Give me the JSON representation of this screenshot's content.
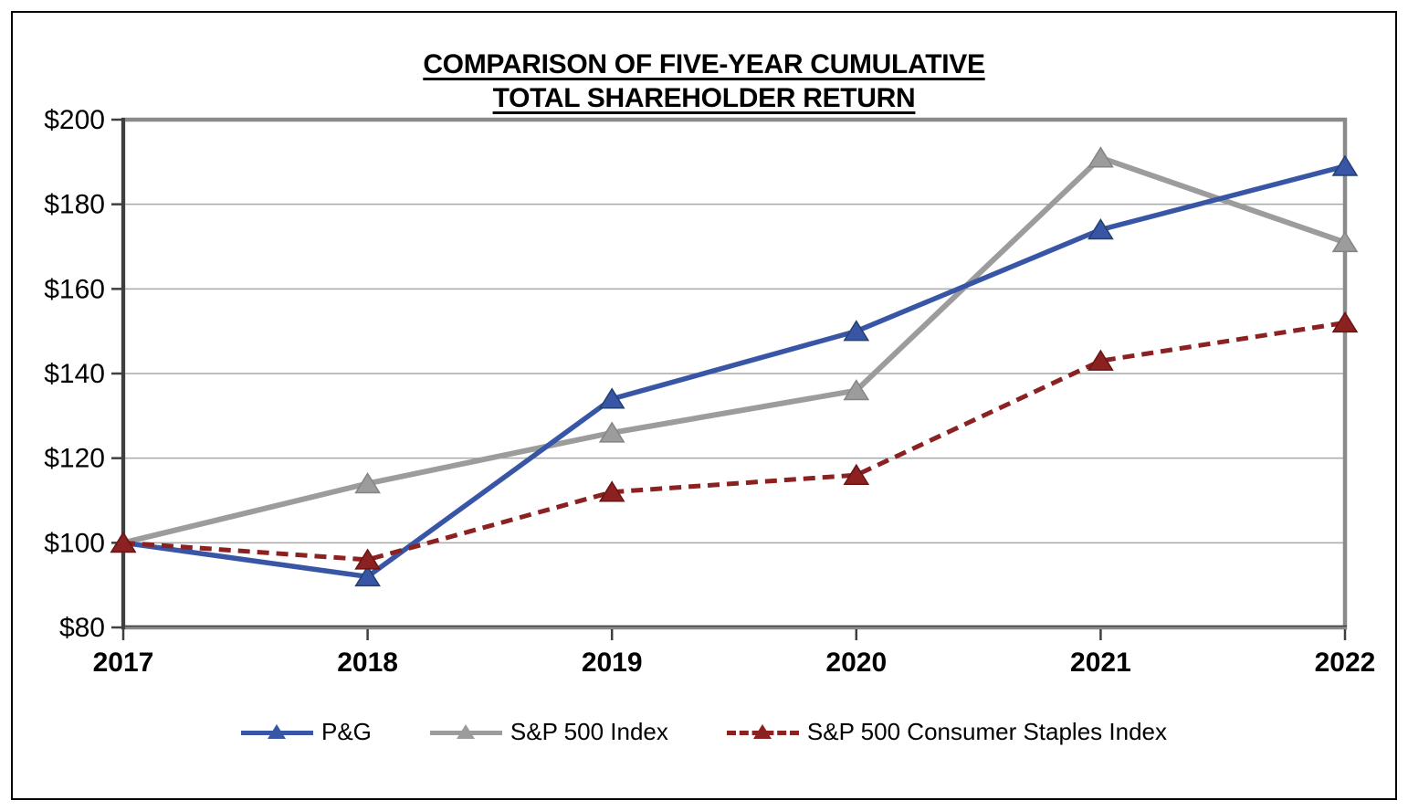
{
  "title": {
    "line1": "COMPARISON OF FIVE-YEAR CUMULATIVE",
    "line2": "TOTAL SHAREHOLDER RETURN"
  },
  "chart_data": {
    "type": "line",
    "title": "COMPARISON OF FIVE-YEAR CUMULATIVE TOTAL SHAREHOLDER RETURN",
    "categories": [
      "2017",
      "2018",
      "2019",
      "2020",
      "2021",
      "2022"
    ],
    "series": [
      {
        "name": "P&G",
        "values": [
          100,
          92,
          134,
          150,
          174,
          189
        ],
        "color": "#3856A5",
        "marker_stroke": "#24406E",
        "line_style": "solid",
        "marker": "triangle-up"
      },
      {
        "name": "S&P 500 Index",
        "values": [
          100,
          114,
          126,
          136,
          191,
          171
        ],
        "color": "#9C9C9C",
        "marker_stroke": "#848484",
        "line_style": "solid",
        "marker": "triangle-up"
      },
      {
        "name": "S&P 500 Consumer Staples Index",
        "values": [
          100,
          96,
          112,
          116,
          143,
          152
        ],
        "color": "#8B2121",
        "marker_stroke": "#6B1414",
        "line_style": "dashed",
        "marker": "triangle-up"
      }
    ],
    "ylim": [
      80,
      200
    ],
    "ytick_step": 20,
    "ytick_prefix": "$",
    "ytick_labels": [
      "$80",
      "$100",
      "$120",
      "$140",
      "$160",
      "$180",
      "$200"
    ],
    "xlabel": "",
    "ylabel": "",
    "grid": "horizontal",
    "legend_position": "bottom",
    "colors": {
      "gridline": "#A9A9A9",
      "plot_border": "#8A8A8A",
      "axis": "#3F3F3F",
      "label_text": "#000000"
    }
  }
}
